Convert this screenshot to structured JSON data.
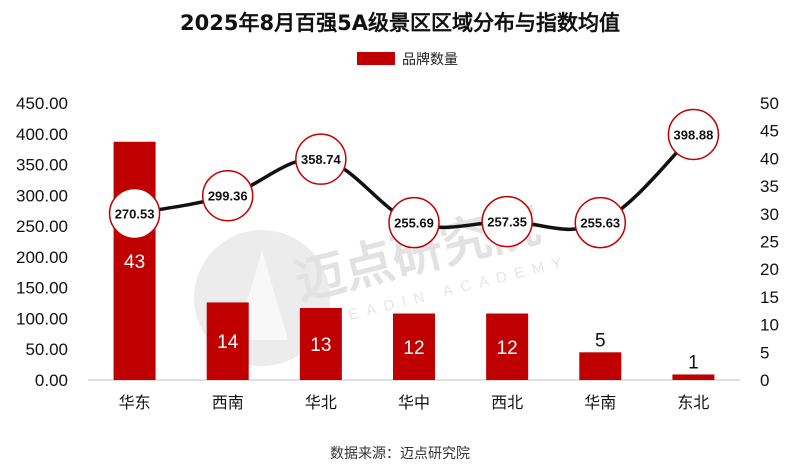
{
  "chart_data": {
    "type": "bar+line",
    "title": "2025年8月百强5A级景区区域分布与指数均值",
    "categories": [
      "华东",
      "西南",
      "华北",
      "华中",
      "西北",
      "华南",
      "东北"
    ],
    "series": [
      {
        "name": "品牌数量",
        "type": "bar",
        "axis": "right",
        "color": "#c00000",
        "values": [
          43,
          14,
          13,
          12,
          12,
          5,
          1
        ]
      },
      {
        "type": "line",
        "axis": "left",
        "color": "#111111",
        "values": [
          270.53,
          299.36,
          358.74,
          255.69,
          257.35,
          255.63,
          398.88
        ]
      }
    ],
    "left_axis": {
      "min": 0,
      "max": 450,
      "step": 50,
      "ticks": [
        "0.00",
        "50.00",
        "100.00",
        "150.00",
        "200.00",
        "250.00",
        "300.00",
        "350.00",
        "400.00",
        "450.00"
      ]
    },
    "right_axis": {
      "min": 0,
      "max": 50,
      "step": 5,
      "ticks": [
        "0",
        "5",
        "10",
        "15",
        "20",
        "25",
        "30",
        "35",
        "40",
        "45",
        "50"
      ]
    },
    "legend_position": "top-center",
    "grid": false
  },
  "source_text": "数据来源：迈点研究院",
  "watermark": {
    "text": "迈点研究院",
    "subtext": "MEADIN ACADEMY"
  },
  "colors": {
    "bar": "#c00000",
    "line": "#111111",
    "marker_stroke": "#c00000"
  }
}
